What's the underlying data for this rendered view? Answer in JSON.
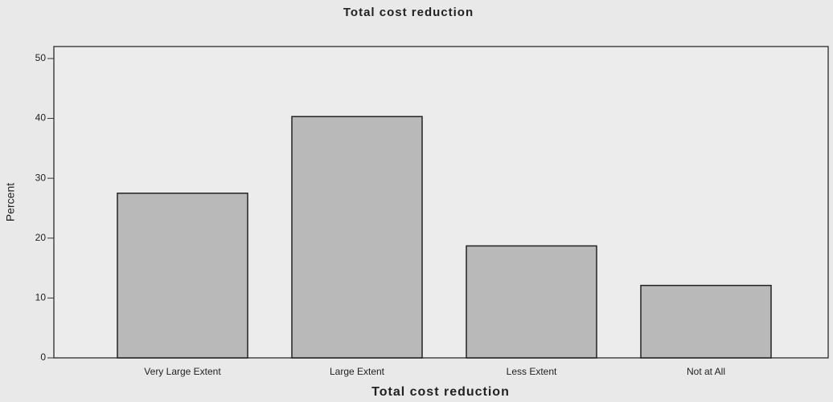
{
  "chart_data": {
    "type": "bar",
    "title": "Total cost reduction",
    "x_label": "Total cost reduction",
    "y_label": "Percent",
    "categories": [
      "Very Large Extent",
      "Large Extent",
      "Less Extent",
      "Not at All"
    ],
    "values": [
      27.5,
      40.3,
      18.7,
      12.1
    ],
    "color": "#b9b9b9",
    "ylim": [
      0,
      52
    ],
    "yticks": [
      0,
      10,
      20,
      30,
      40,
      50
    ],
    "grid": false
  }
}
